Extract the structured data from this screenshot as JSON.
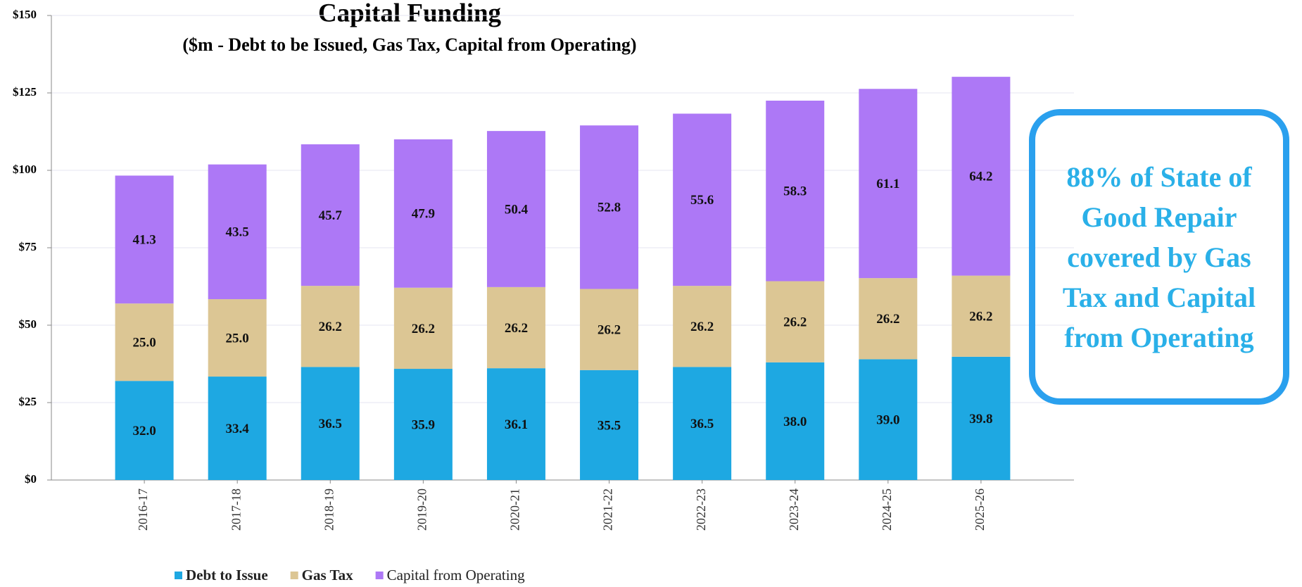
{
  "chart_data": {
    "type": "bar",
    "stacked": true,
    "title": "Capital Funding",
    "subtitle": "($m - Debt to be Issued, Gas Tax, Capital from Operating)",
    "categories": [
      "2016-17",
      "2017-18",
      "2018-19",
      "2019-20",
      "2020-21",
      "2021-22",
      "2022-23",
      "2023-24",
      "2024-25",
      "2025-26"
    ],
    "series": [
      {
        "name": "Debt to Issue",
        "color": "#1ea8e2",
        "values": [
          32.0,
          33.4,
          36.5,
          35.9,
          36.1,
          35.5,
          36.5,
          38.0,
          39.0,
          39.8
        ],
        "value_labels": [
          "32.0",
          "33.4",
          "36.5",
          "35.9",
          "36.1",
          "35.5",
          "36.5",
          "38.0",
          "39.0",
          "39.8"
        ]
      },
      {
        "name": "Gas Tax",
        "color": "#dcc694",
        "values": [
          25.0,
          25.0,
          26.2,
          26.2,
          26.2,
          26.2,
          26.2,
          26.2,
          26.2,
          26.2
        ],
        "value_labels": [
          "25.0",
          "25.0",
          "26.2",
          "26.2",
          "26.2",
          "26.2",
          "26.2",
          "26.2",
          "26.2",
          "26.2"
        ]
      },
      {
        "name": "Capital from Operating",
        "color": "#ad78f6",
        "values": [
          41.3,
          43.5,
          45.7,
          47.9,
          50.4,
          52.8,
          55.6,
          58.3,
          61.1,
          64.2
        ],
        "value_labels": [
          "41.3",
          "43.5",
          "45.7",
          "47.9",
          "50.4",
          "52.8",
          "55.6",
          "58.3",
          "61.1",
          "64.2"
        ]
      }
    ],
    "ylim": [
      0,
      150
    ],
    "yticks": [
      {
        "value": 0,
        "label": "$0"
      },
      {
        "value": 25,
        "label": "$25"
      },
      {
        "value": 50,
        "label": "$50"
      },
      {
        "value": 75,
        "label": "$75"
      },
      {
        "value": 100,
        "label": "$100"
      },
      {
        "value": 125,
        "label": "$125"
      },
      {
        "value": 150,
        "label": "$150"
      }
    ],
    "grid": true,
    "legend": "bottom",
    "annotation": "88% of State of Good Repair covered by Gas Tax and Capital from Operating"
  }
}
